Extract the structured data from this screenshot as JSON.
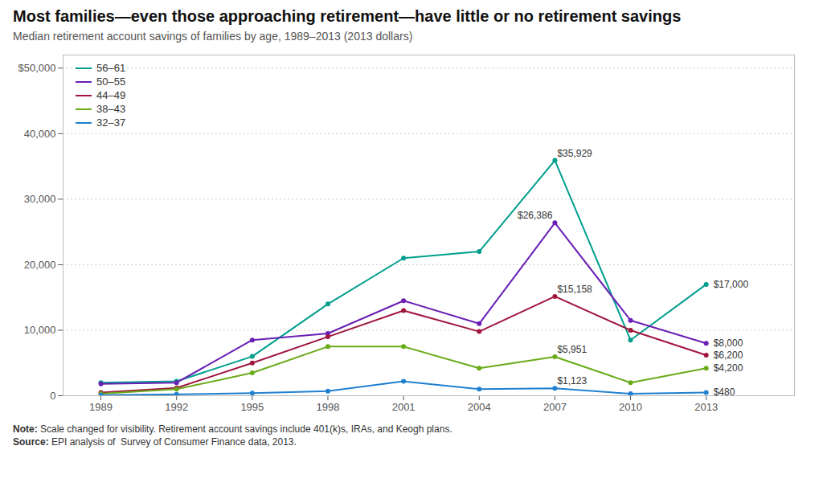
{
  "chart_data": {
    "type": "line",
    "title": "Most families—even those approaching retirement—have little or no retirement savings",
    "subtitle": "Median retirement account savings of families by age, 1989–2013 (2013 dollars)",
    "notes": [
      "Note: Scale changed for visibility. Retirement account savings include 401(k)s, IRAs, and Keogh plans.",
      "Source: EPI analysis of  Survey of Consumer Finance data, 2013."
    ],
    "x": [
      1989,
      1992,
      1995,
      1998,
      2001,
      2004,
      2007,
      2010,
      2013
    ],
    "series": [
      {
        "name": "56–61",
        "color": "#009E8E",
        "values": [
          2000,
          2200,
          6000,
          14000,
          21000,
          22000,
          35929,
          8500,
          17000
        ]
      },
      {
        "name": "50–55",
        "color": "#6A1FB5",
        "values": [
          1800,
          2000,
          8500,
          9500,
          14500,
          11000,
          26386,
          11500,
          8000
        ]
      },
      {
        "name": "44–49",
        "color": "#A0163E",
        "values": [
          500,
          1200,
          5000,
          9000,
          13000,
          9800,
          15158,
          10000,
          6200
        ]
      },
      {
        "name": "38–43",
        "color": "#6AAB1A",
        "values": [
          300,
          1000,
          3500,
          7500,
          7500,
          4200,
          5951,
          2000,
          4200
        ]
      },
      {
        "name": "32–37",
        "color": "#2080D0",
        "values": [
          100,
          200,
          400,
          700,
          2200,
          1000,
          1123,
          300,
          480
        ]
      }
    ],
    "annotations": [
      {
        "series": "56–61",
        "x": 2007,
        "y": 35929,
        "text": "$35,929"
      },
      {
        "series": "50–55",
        "x": 2007,
        "y": 26386,
        "text": "$26,386"
      },
      {
        "series": "44–49",
        "x": 2007,
        "y": 15158,
        "text": "$15,158"
      },
      {
        "series": "38–43",
        "x": 2007,
        "y": 5951,
        "text": "$5,951"
      },
      {
        "series": "32–37",
        "x": 2007,
        "y": 1123,
        "text": "$1,123"
      },
      {
        "series": "56–61",
        "x": 2013,
        "y": 17000,
        "text": "$17,000"
      },
      {
        "series": "50–55",
        "x": 2013,
        "y": 8000,
        "text": "$8,000"
      },
      {
        "series": "44–49",
        "x": 2013,
        "y": 6200,
        "text": "$6,200"
      },
      {
        "series": "38–43",
        "x": 2013,
        "y": 4200,
        "text": "$4,200"
      },
      {
        "series": "32–37",
        "x": 2013,
        "y": 480,
        "text": "$480"
      }
    ],
    "xlim": [
      1987.5,
      2016.5
    ],
    "xticks": [
      1989,
      1992,
      1995,
      1998,
      2001,
      2004,
      2007,
      2010,
      2013
    ],
    "ylim": [
      0,
      52000
    ],
    "yticks": [
      0,
      {
        "value": 10000,
        "label": "10,000"
      },
      {
        "value": 20000,
        "label": "20,000"
      },
      {
        "value": 30000,
        "label": "30,000"
      },
      {
        "value": 40000,
        "label": "40,000"
      },
      {
        "value": 50000,
        "label": "$50,000"
      }
    ],
    "grid": true,
    "legend": "top-left",
    "marker": "circle"
  }
}
